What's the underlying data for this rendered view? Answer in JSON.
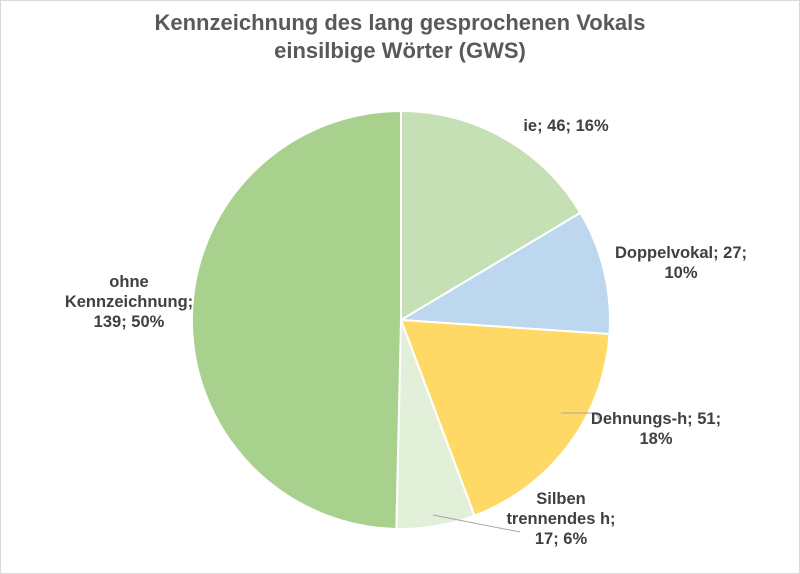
{
  "chart_data": {
    "type": "pie",
    "title": [
      "Kennzeichnung des lang gesprochenen Vokals",
      "einsilbige Wörter (GWS)"
    ],
    "slices": [
      {
        "name": "ie",
        "value": 46,
        "percent": "16%",
        "color": "#c5e0b4",
        "label_lines": [
          "ie; 46; 16%"
        ]
      },
      {
        "name": "Doppelvokal",
        "value": 27,
        "percent": "10%",
        "color": "#bdd7ee",
        "label_lines": [
          "Doppelvokal; 27;",
          "10%"
        ]
      },
      {
        "name": "Dehnungs-h",
        "value": 51,
        "percent": "18%",
        "color": "#ffd966",
        "label_lines": [
          "Dehnungs-h; 51;",
          "18%"
        ]
      },
      {
        "name": "Silben trennendes h",
        "value": 17,
        "percent": "6%",
        "color": "#e2f0d9",
        "label_lines": [
          "Silben",
          "trennendes h;",
          "17; 6%"
        ]
      },
      {
        "name": "ohne Kennzeichnung",
        "value": 139,
        "percent": "50%",
        "color": "#a9d18e",
        "label_lines": [
          "ohne",
          "Kennzeichnung;",
          "139; 50%"
        ]
      }
    ],
    "start_angle_deg": 0,
    "direction": "clockwise",
    "legend": "none"
  }
}
